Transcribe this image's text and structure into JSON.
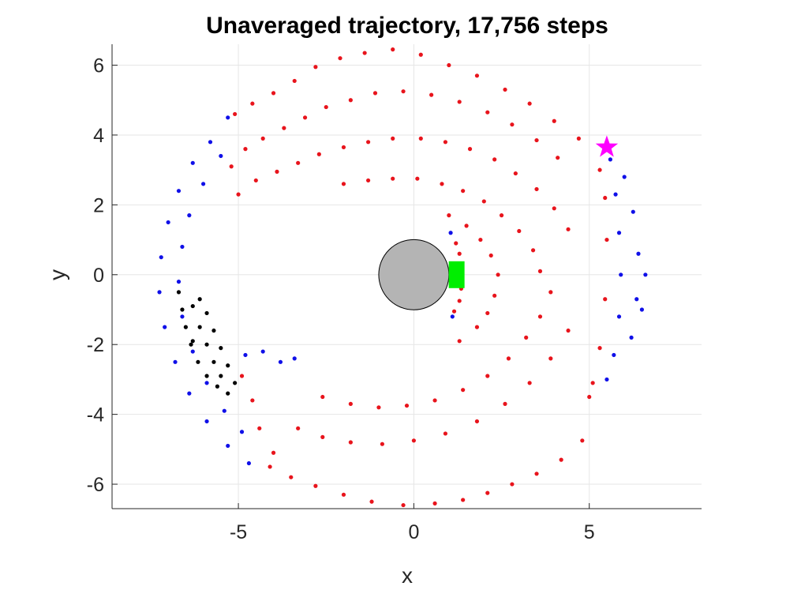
{
  "chart_data": {
    "type": "scatter",
    "title": "Unaveraged trajectory, 17,756 steps",
    "xlabel": "x",
    "ylabel": "y",
    "xlim": [
      -8.6,
      8.2
    ],
    "ylim": [
      -6.7,
      6.6
    ],
    "grid": true,
    "xticks": [
      -5,
      0,
      5
    ],
    "xtick_labels": [
      "-5",
      "0",
      "5"
    ],
    "yticks": [
      -6,
      -4,
      -2,
      0,
      2,
      4,
      6
    ],
    "ytick_labels": [
      "-6",
      "-4",
      "-2",
      "0",
      "2",
      "4",
      "6"
    ],
    "colors": {
      "red_points": "#e8141c",
      "blue_points": "#1010e8",
      "black_points": "#000000",
      "body": "#b4b4b4",
      "target": "#00ee00",
      "start": "#ff00ff",
      "grid": "#e6e6e6",
      "axis": "#262626"
    },
    "central_body": {
      "x": 0,
      "y": 0,
      "radius": 1.0
    },
    "target_marker": {
      "x": 1.22,
      "y": 0,
      "shape": "square"
    },
    "start_marker": {
      "x": 5.5,
      "y": 3.65,
      "shape": "pentagram"
    },
    "series": [
      {
        "color": "red",
        "points": [
          [
            -5.1,
            4.6
          ],
          [
            -4.6,
            4.9
          ],
          [
            -4.0,
            5.2
          ],
          [
            -3.4,
            5.55
          ],
          [
            -2.8,
            5.95
          ],
          [
            -2.1,
            6.2
          ],
          [
            -1.4,
            6.35
          ],
          [
            -0.6,
            6.45
          ],
          [
            0.2,
            6.3
          ],
          [
            1.0,
            6.0
          ],
          [
            1.8,
            5.7
          ],
          [
            2.6,
            5.3
          ],
          [
            3.3,
            4.9
          ],
          [
            4.0,
            4.4
          ],
          [
            4.7,
            3.9
          ],
          [
            -4.8,
            3.6
          ],
          [
            -4.3,
            3.9
          ],
          [
            -3.7,
            4.2
          ],
          [
            -3.1,
            4.5
          ],
          [
            -2.5,
            4.8
          ],
          [
            -1.8,
            5.0
          ],
          [
            -1.1,
            5.2
          ],
          [
            -0.3,
            5.25
          ],
          [
            0.5,
            5.15
          ],
          [
            1.3,
            4.95
          ],
          [
            2.1,
            4.65
          ],
          [
            2.8,
            4.3
          ],
          [
            3.5,
            3.85
          ],
          [
            4.1,
            3.35
          ],
          [
            -4.5,
            2.7
          ],
          [
            -3.9,
            2.95
          ],
          [
            -3.3,
            3.2
          ],
          [
            -2.7,
            3.45
          ],
          [
            -2.0,
            3.65
          ],
          [
            -1.3,
            3.8
          ],
          [
            -0.6,
            3.9
          ],
          [
            0.2,
            3.9
          ],
          [
            0.9,
            3.8
          ],
          [
            1.6,
            3.6
          ],
          [
            2.3,
            3.3
          ],
          [
            2.9,
            2.9
          ],
          [
            3.5,
            2.45
          ],
          [
            4.0,
            1.9
          ],
          [
            4.4,
            1.3
          ],
          [
            -2.0,
            2.6
          ],
          [
            -1.3,
            2.7
          ],
          [
            -0.6,
            2.75
          ],
          [
            0.1,
            2.75
          ],
          [
            0.8,
            2.6
          ],
          [
            1.4,
            2.4
          ],
          [
            2.0,
            2.1
          ],
          [
            2.5,
            1.7
          ],
          [
            3.0,
            1.25
          ],
          [
            3.4,
            0.7
          ],
          [
            3.6,
            0.1
          ],
          [
            1.0,
            1.7
          ],
          [
            1.5,
            1.4
          ],
          [
            1.9,
            1.0
          ],
          [
            2.2,
            0.55
          ],
          [
            2.4,
            0.0
          ],
          [
            2.3,
            -0.6
          ],
          [
            2.1,
            -1.1
          ],
          [
            1.8,
            -1.5
          ],
          [
            1.3,
            -1.9
          ],
          [
            3.9,
            -0.5
          ],
          [
            3.6,
            -1.2
          ],
          [
            3.2,
            -1.8
          ],
          [
            2.7,
            -2.4
          ],
          [
            2.1,
            -2.9
          ],
          [
            1.4,
            -3.3
          ],
          [
            0.6,
            -3.6
          ],
          [
            -0.2,
            -3.75
          ],
          [
            -1.0,
            -3.8
          ],
          [
            -1.8,
            -3.7
          ],
          [
            -2.6,
            -3.5
          ],
          [
            4.4,
            -1.6
          ],
          [
            3.9,
            -2.4
          ],
          [
            3.3,
            -3.1
          ],
          [
            2.6,
            -3.7
          ],
          [
            1.8,
            -4.2
          ],
          [
            0.9,
            -4.55
          ],
          [
            0.0,
            -4.75
          ],
          [
            -0.9,
            -4.85
          ],
          [
            -1.8,
            -4.8
          ],
          [
            -2.6,
            -4.65
          ],
          [
            -3.3,
            -4.4
          ],
          [
            4.8,
            -4.75
          ],
          [
            4.2,
            -5.3
          ],
          [
            3.5,
            -5.7
          ],
          [
            2.8,
            -6.0
          ],
          [
            2.1,
            -6.25
          ],
          [
            1.4,
            -6.45
          ],
          [
            0.6,
            -6.55
          ],
          [
            -0.3,
            -6.6
          ],
          [
            -1.2,
            -6.5
          ],
          [
            -2.0,
            -6.3
          ],
          [
            -2.8,
            -6.05
          ],
          [
            -3.5,
            -5.8
          ],
          [
            -4.1,
            -5.5
          ],
          [
            -4.9,
            -2.9
          ],
          [
            -4.6,
            -3.6
          ],
          [
            -4.4,
            -4.4
          ],
          [
            -4.0,
            -5.1
          ],
          [
            -5.2,
            3.1
          ],
          [
            -5.0,
            2.3
          ],
          [
            5.3,
            3.0
          ],
          [
            5.45,
            2.2
          ],
          [
            5.5,
            1.0
          ],
          [
            5.45,
            -0.7
          ],
          [
            5.3,
            -2.1
          ],
          [
            5.1,
            -3.1
          ],
          [
            5.0,
            -3.5
          ],
          [
            1.2,
            0.9
          ],
          [
            1.3,
            0.6
          ],
          [
            1.35,
            -0.4
          ],
          [
            1.3,
            -0.75
          ],
          [
            1.15,
            -1.05
          ]
        ]
      },
      {
        "color": "blue",
        "points": [
          [
            -5.8,
            3.8
          ],
          [
            -6.3,
            3.2
          ],
          [
            -6.7,
            2.4
          ],
          [
            -7.0,
            1.5
          ],
          [
            -7.2,
            0.5
          ],
          [
            -7.25,
            -0.5
          ],
          [
            -7.1,
            -1.5
          ],
          [
            -6.8,
            -2.5
          ],
          [
            -6.4,
            -3.4
          ],
          [
            -5.9,
            -4.2
          ],
          [
            -5.3,
            -4.9
          ],
          [
            -4.7,
            -5.4
          ],
          [
            -5.5,
            3.4
          ],
          [
            -6.0,
            2.6
          ],
          [
            -6.4,
            1.7
          ],
          [
            -6.6,
            0.8
          ],
          [
            -6.7,
            -0.2
          ],
          [
            -6.6,
            -1.2
          ],
          [
            -6.3,
            -2.2
          ],
          [
            -5.9,
            -3.1
          ],
          [
            -5.4,
            -3.9
          ],
          [
            -4.9,
            -4.5
          ],
          [
            -5.3,
            4.5
          ],
          [
            -4.8,
            -2.3
          ],
          [
            -4.3,
            -2.2
          ],
          [
            -3.8,
            -2.5
          ],
          [
            -3.4,
            -2.4
          ],
          [
            5.6,
            3.3
          ],
          [
            5.75,
            2.3
          ],
          [
            5.85,
            1.2
          ],
          [
            5.9,
            0.0
          ],
          [
            5.85,
            -1.2
          ],
          [
            5.7,
            -2.3
          ],
          [
            5.5,
            -3.0
          ],
          [
            6.0,
            2.8
          ],
          [
            6.25,
            1.8
          ],
          [
            6.4,
            0.6
          ],
          [
            6.35,
            -0.7
          ],
          [
            6.2,
            -1.8
          ],
          [
            6.6,
            0.0
          ],
          [
            6.5,
            -1.0
          ],
          [
            1.05,
            1.2
          ],
          [
            1.1,
            -1.2
          ]
        ]
      },
      {
        "color": "black",
        "points": [
          [
            -6.7,
            -0.5
          ],
          [
            -6.6,
            -1.0
          ],
          [
            -6.5,
            -1.5
          ],
          [
            -6.35,
            -2.0
          ],
          [
            -6.15,
            -2.5
          ],
          [
            -5.9,
            -2.9
          ],
          [
            -5.6,
            -3.2
          ],
          [
            -5.3,
            -3.4
          ],
          [
            -5.1,
            -3.1
          ],
          [
            -5.3,
            -2.6
          ],
          [
            -5.5,
            -2.1
          ],
          [
            -5.7,
            -1.6
          ],
          [
            -5.9,
            -1.1
          ],
          [
            -6.1,
            -0.7
          ],
          [
            -6.3,
            -0.9
          ],
          [
            -6.1,
            -1.5
          ],
          [
            -5.9,
            -2.0
          ],
          [
            -5.7,
            -2.5
          ],
          [
            -5.5,
            -2.9
          ],
          [
            -6.3,
            -1.9
          ]
        ]
      }
    ]
  }
}
